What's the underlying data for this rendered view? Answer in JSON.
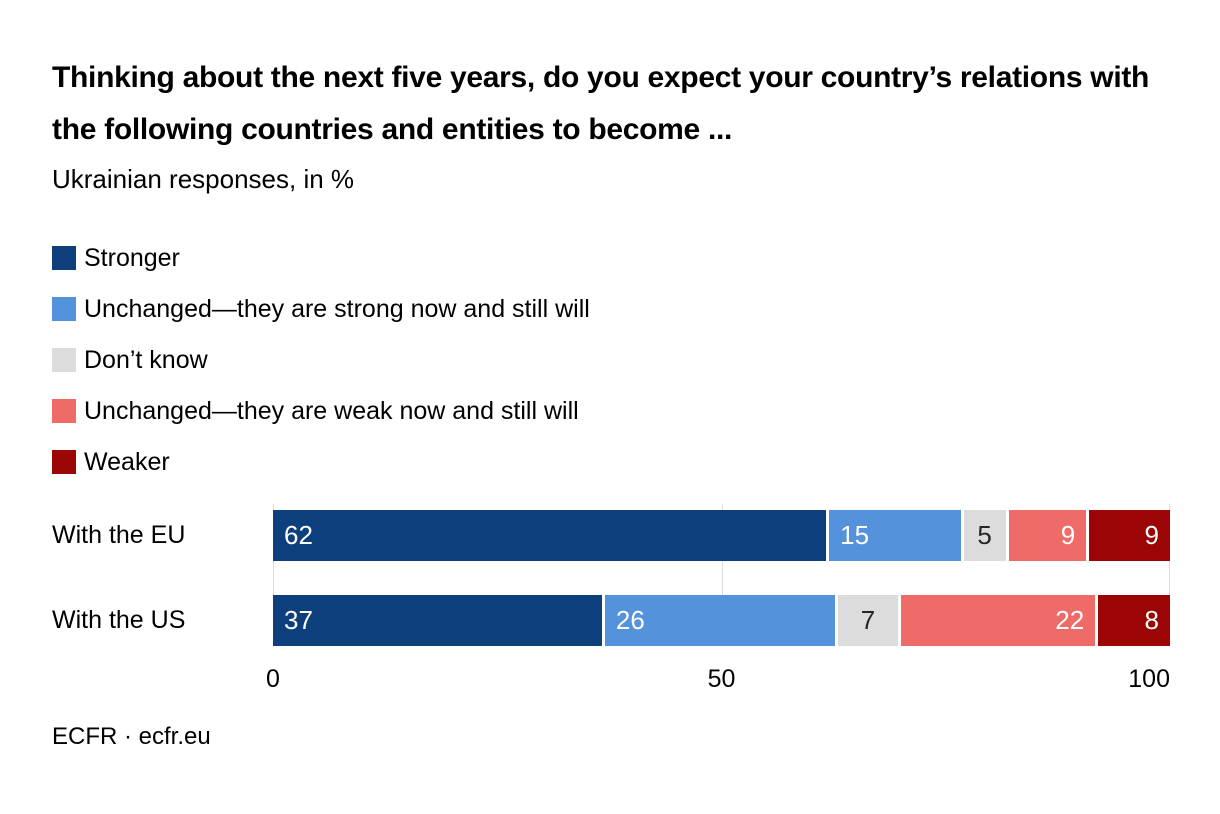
{
  "header": {
    "title": "Thinking about the next five years, do you expect your country’s relations with the following countries and entities to become ...",
    "subtitle": "Ukrainian responses, in %"
  },
  "legend": [
    {
      "label": "Stronger",
      "color": "#0d3f7c"
    },
    {
      "label": "Unchanged—they are strong now and still will",
      "color": "#5592dc"
    },
    {
      "label": "Don’t know",
      "color": "#dcdcdc"
    },
    {
      "label": "Unchanged—they are weak now and still will",
      "color": "#ee6b68"
    },
    {
      "label": "Weaker",
      "color": "#9c0506"
    }
  ],
  "chart_data": {
    "type": "bar",
    "orientation": "horizontal",
    "stacked": true,
    "unit": "%",
    "title": "Thinking about the next five years, do you expect your country’s relations with the following countries and entities to become ...",
    "subtitle": "Ukrainian responses, in %",
    "categories": [
      "With the EU",
      "With the US"
    ],
    "series": [
      {
        "name": "Stronger",
        "color": "#0d3f7c",
        "values": [
          62,
          37
        ],
        "label_color": "#ffffff",
        "label_align": "left"
      },
      {
        "name": "Unchanged—they are strong now and still will",
        "color": "#5592dc",
        "values": [
          15,
          26
        ],
        "label_color": "#ffffff",
        "label_align": "left"
      },
      {
        "name": "Don’t know",
        "color": "#dcdcdc",
        "values": [
          5,
          7
        ],
        "label_color": "#262626",
        "label_align": "center"
      },
      {
        "name": "Unchanged—they are weak now and still will",
        "color": "#ee6b68",
        "values": [
          9,
          22
        ],
        "label_color": "#ffffff",
        "label_align": "right"
      },
      {
        "name": "Weaker",
        "color": "#9c0506",
        "values": [
          9,
          8
        ],
        "label_color": "#ffffff",
        "label_align": "right"
      }
    ],
    "xlim": [
      0,
      100
    ],
    "x_ticks": [
      {
        "value": 0,
        "label": "0",
        "align": "center"
      },
      {
        "value": 50,
        "label": "50",
        "align": "center"
      },
      {
        "value": 100,
        "label": "100",
        "align": "right"
      }
    ],
    "gridlines": {
      "values": [
        0,
        50,
        100
      ],
      "color": "#dcdcdc"
    },
    "legend_position": "top-left-vertical"
  },
  "footer": {
    "text": "ECFR · ecfr.eu"
  }
}
